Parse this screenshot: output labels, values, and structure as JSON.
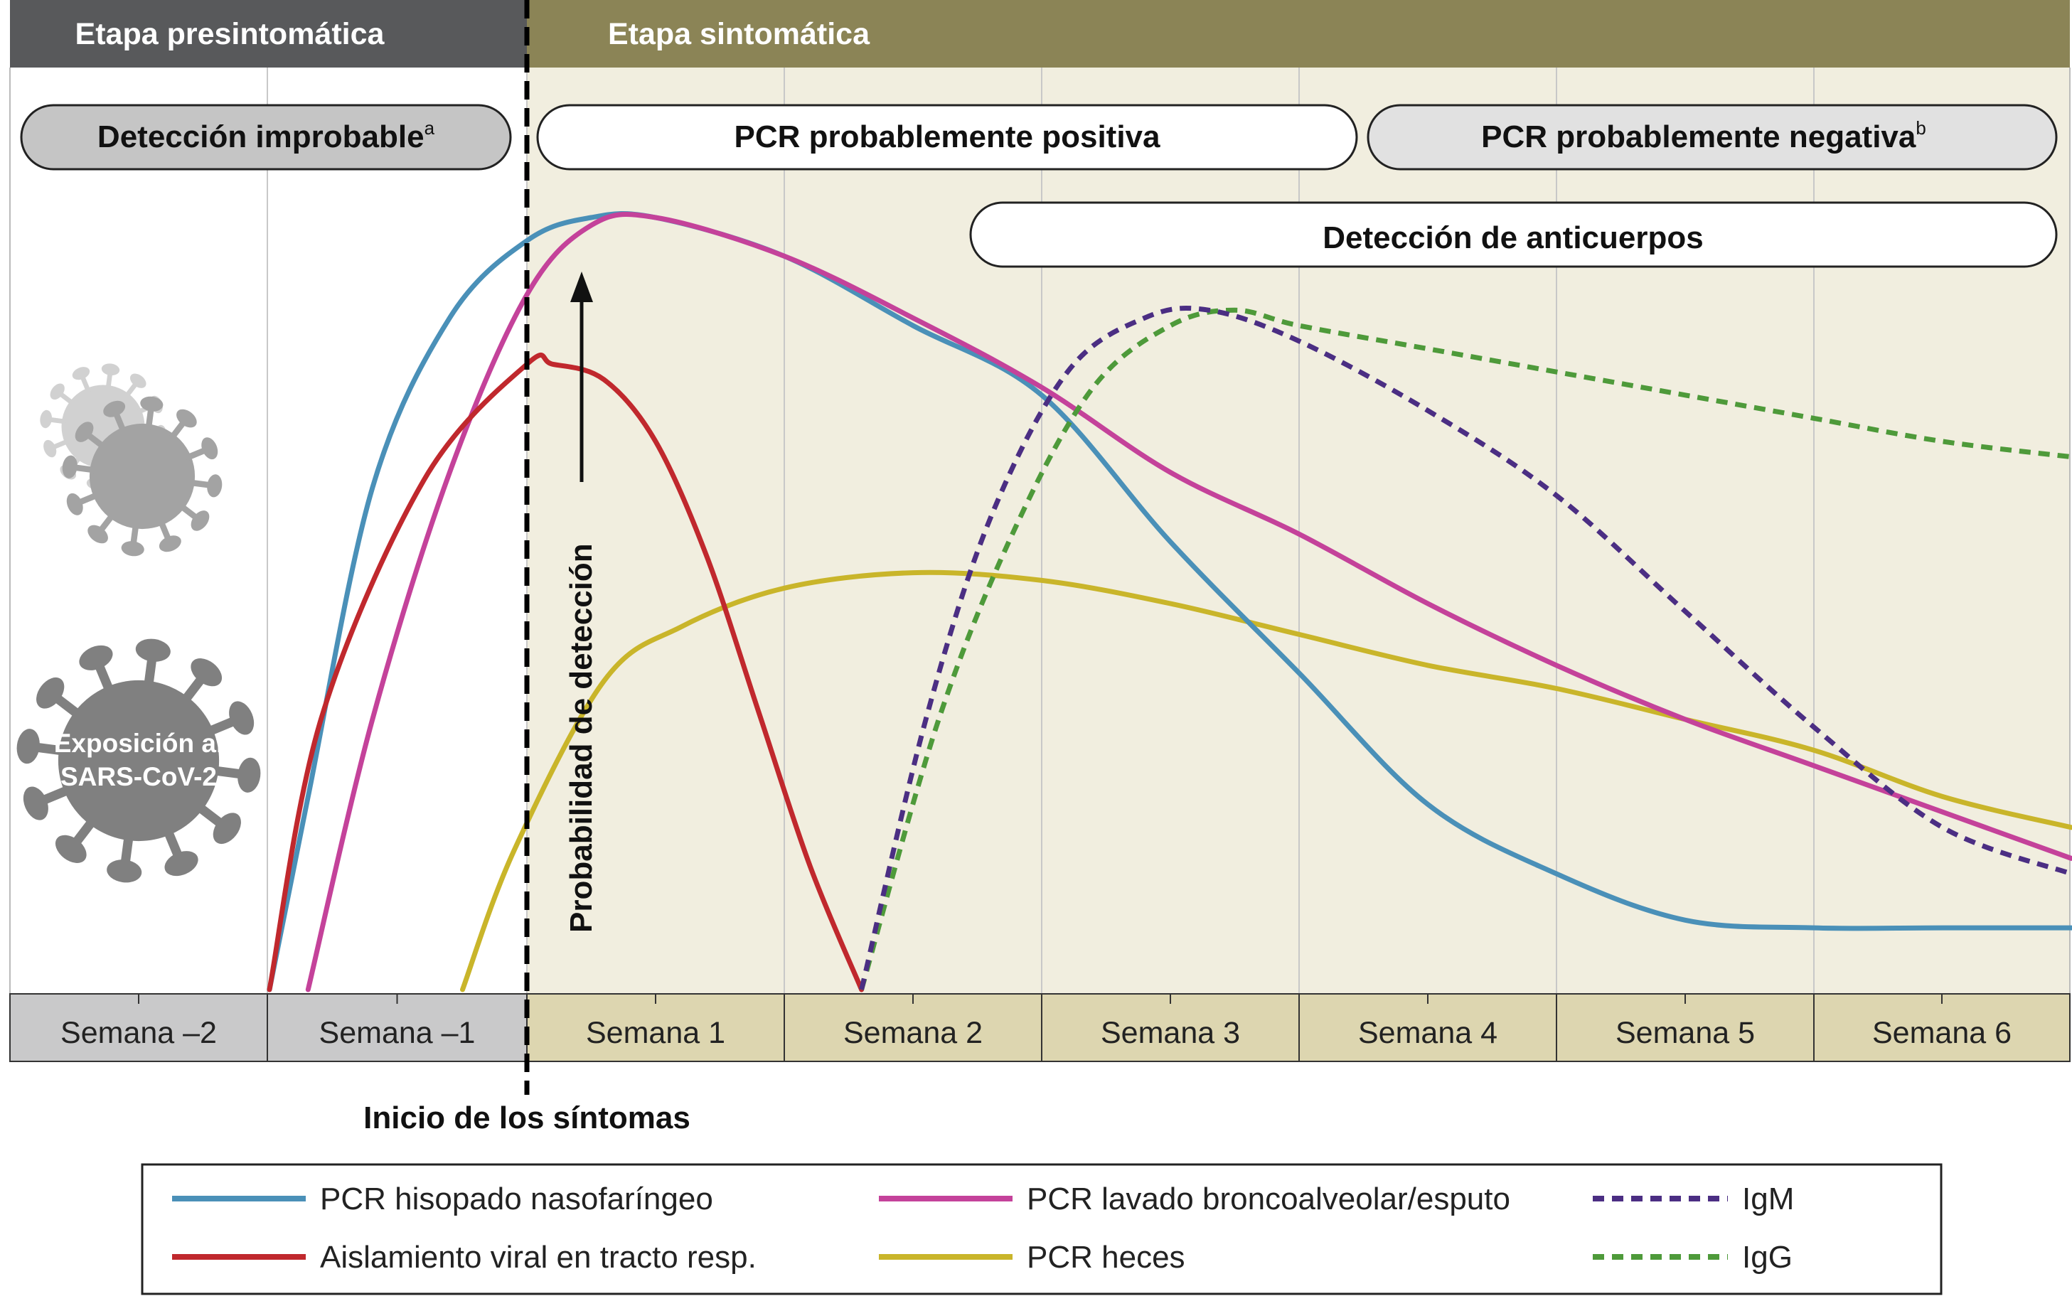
{
  "stages": {
    "presymptomatic": "Etapa presintomática",
    "symptomatic": "Etapa sintomática"
  },
  "pills": {
    "unlikely": "Detección improbable",
    "unlikely_sup": "a",
    "pcr_positive": "PCR probablemente positiva",
    "pcr_negative": "PCR probablemente negativa",
    "pcr_negative_sup": "b",
    "antibodies": "Detección de anticuerpos"
  },
  "virus_label": [
    "Exposición al",
    "SARS-CoV-2"
  ],
  "axis_label": "Probabilidad de detección",
  "onset_label": "Inicio de los síntomas",
  "colors": {
    "presymptomatic_bar": "#58595b",
    "symptomatic_bar": "#8b8456",
    "presymptomatic_week": "#c9c9ca",
    "symptomatic_week": "#ddd6b0",
    "symptomatic_bg": "#f1eedf",
    "virus": "#808080"
  },
  "chart_data": {
    "type": "line",
    "x_unit": "semanas desde el inicio de los síntomas",
    "x_range": [
      -2,
      6
    ],
    "y_range": [
      0,
      1
    ],
    "categories": [
      "Semana –2",
      "Semana –1",
      "Semana 1",
      "Semana 2",
      "Semana 3",
      "Semana 4",
      "Semana 5",
      "Semana 6"
    ],
    "series": [
      {
        "name": "PCR hisopado nasofaríngeo",
        "color": "#4a90b8",
        "dash": false,
        "points": [
          [
            -1.0,
            0.0
          ],
          [
            -0.85,
            0.25
          ],
          [
            -0.6,
            0.65
          ],
          [
            -0.3,
            0.87
          ],
          [
            0.0,
            0.97
          ],
          [
            0.25,
            1.0
          ],
          [
            0.5,
            1.0
          ],
          [
            1.0,
            0.95
          ],
          [
            1.5,
            0.86
          ],
          [
            2.0,
            0.77
          ],
          [
            2.5,
            0.58
          ],
          [
            3.0,
            0.41
          ],
          [
            3.5,
            0.24
          ],
          [
            4.0,
            0.15
          ],
          [
            4.5,
            0.09
          ],
          [
            5.0,
            0.08
          ],
          [
            5.5,
            0.08
          ],
          [
            6.0,
            0.08
          ]
        ]
      },
      {
        "name": "PCR lavado broncoalveolar/esputo",
        "color": "#c4429a",
        "dash": false,
        "points": [
          [
            -0.85,
            0.0
          ],
          [
            -0.6,
            0.35
          ],
          [
            -0.3,
            0.67
          ],
          [
            0.0,
            0.9
          ],
          [
            0.25,
            0.99
          ],
          [
            0.5,
            1.0
          ],
          [
            1.0,
            0.95
          ],
          [
            1.5,
            0.87
          ],
          [
            2.0,
            0.78
          ],
          [
            2.5,
            0.67
          ],
          [
            3.0,
            0.59
          ],
          [
            3.5,
            0.5
          ],
          [
            4.0,
            0.42
          ],
          [
            4.5,
            0.35
          ],
          [
            5.0,
            0.29
          ],
          [
            5.5,
            0.23
          ],
          [
            6.0,
            0.17
          ]
        ]
      },
      {
        "name": "Aislamiento viral en tracto resp.",
        "color": "#c0282d",
        "dash": false,
        "points": [
          [
            -1.0,
            0.0
          ],
          [
            -0.8,
            0.35
          ],
          [
            -0.4,
            0.66
          ],
          [
            0.0,
            0.81
          ],
          [
            0.1,
            0.81
          ],
          [
            0.3,
            0.79
          ],
          [
            0.5,
            0.71
          ],
          [
            0.7,
            0.56
          ],
          [
            0.9,
            0.36
          ],
          [
            1.1,
            0.16
          ],
          [
            1.3,
            0.0
          ]
        ]
      },
      {
        "name": "PCR heces",
        "color": "#c9b52a",
        "dash": false,
        "points": [
          [
            -0.25,
            0.0
          ],
          [
            -0.05,
            0.18
          ],
          [
            0.3,
            0.4
          ],
          [
            0.6,
            0.47
          ],
          [
            1.0,
            0.52
          ],
          [
            1.5,
            0.54
          ],
          [
            2.0,
            0.53
          ],
          [
            2.5,
            0.5
          ],
          [
            3.0,
            0.46
          ],
          [
            3.5,
            0.42
          ],
          [
            4.0,
            0.39
          ],
          [
            4.5,
            0.35
          ],
          [
            5.0,
            0.31
          ],
          [
            5.5,
            0.25
          ],
          [
            6.0,
            0.21
          ]
        ]
      },
      {
        "name": "IgM",
        "color": "#4b2e83",
        "dash": true,
        "points": [
          [
            1.3,
            0.0
          ],
          [
            1.55,
            0.35
          ],
          [
            1.8,
            0.61
          ],
          [
            2.1,
            0.8
          ],
          [
            2.4,
            0.87
          ],
          [
            2.65,
            0.88
          ],
          [
            3.0,
            0.84
          ],
          [
            3.5,
            0.75
          ],
          [
            4.0,
            0.64
          ],
          [
            4.5,
            0.49
          ],
          [
            5.0,
            0.34
          ],
          [
            5.5,
            0.21
          ],
          [
            6.0,
            0.15
          ]
        ]
      },
      {
        "name": "IgG",
        "color": "#4e9a3a",
        "dash": true,
        "points": [
          [
            1.3,
            0.0
          ],
          [
            1.6,
            0.35
          ],
          [
            1.9,
            0.6
          ],
          [
            2.2,
            0.78
          ],
          [
            2.5,
            0.86
          ],
          [
            2.75,
            0.88
          ],
          [
            3.0,
            0.86
          ],
          [
            3.5,
            0.83
          ],
          [
            4.0,
            0.8
          ],
          [
            4.5,
            0.77
          ],
          [
            5.0,
            0.74
          ],
          [
            5.5,
            0.71
          ],
          [
            6.0,
            0.69
          ]
        ]
      }
    ],
    "legend_position": "bottom",
    "grid": true
  }
}
